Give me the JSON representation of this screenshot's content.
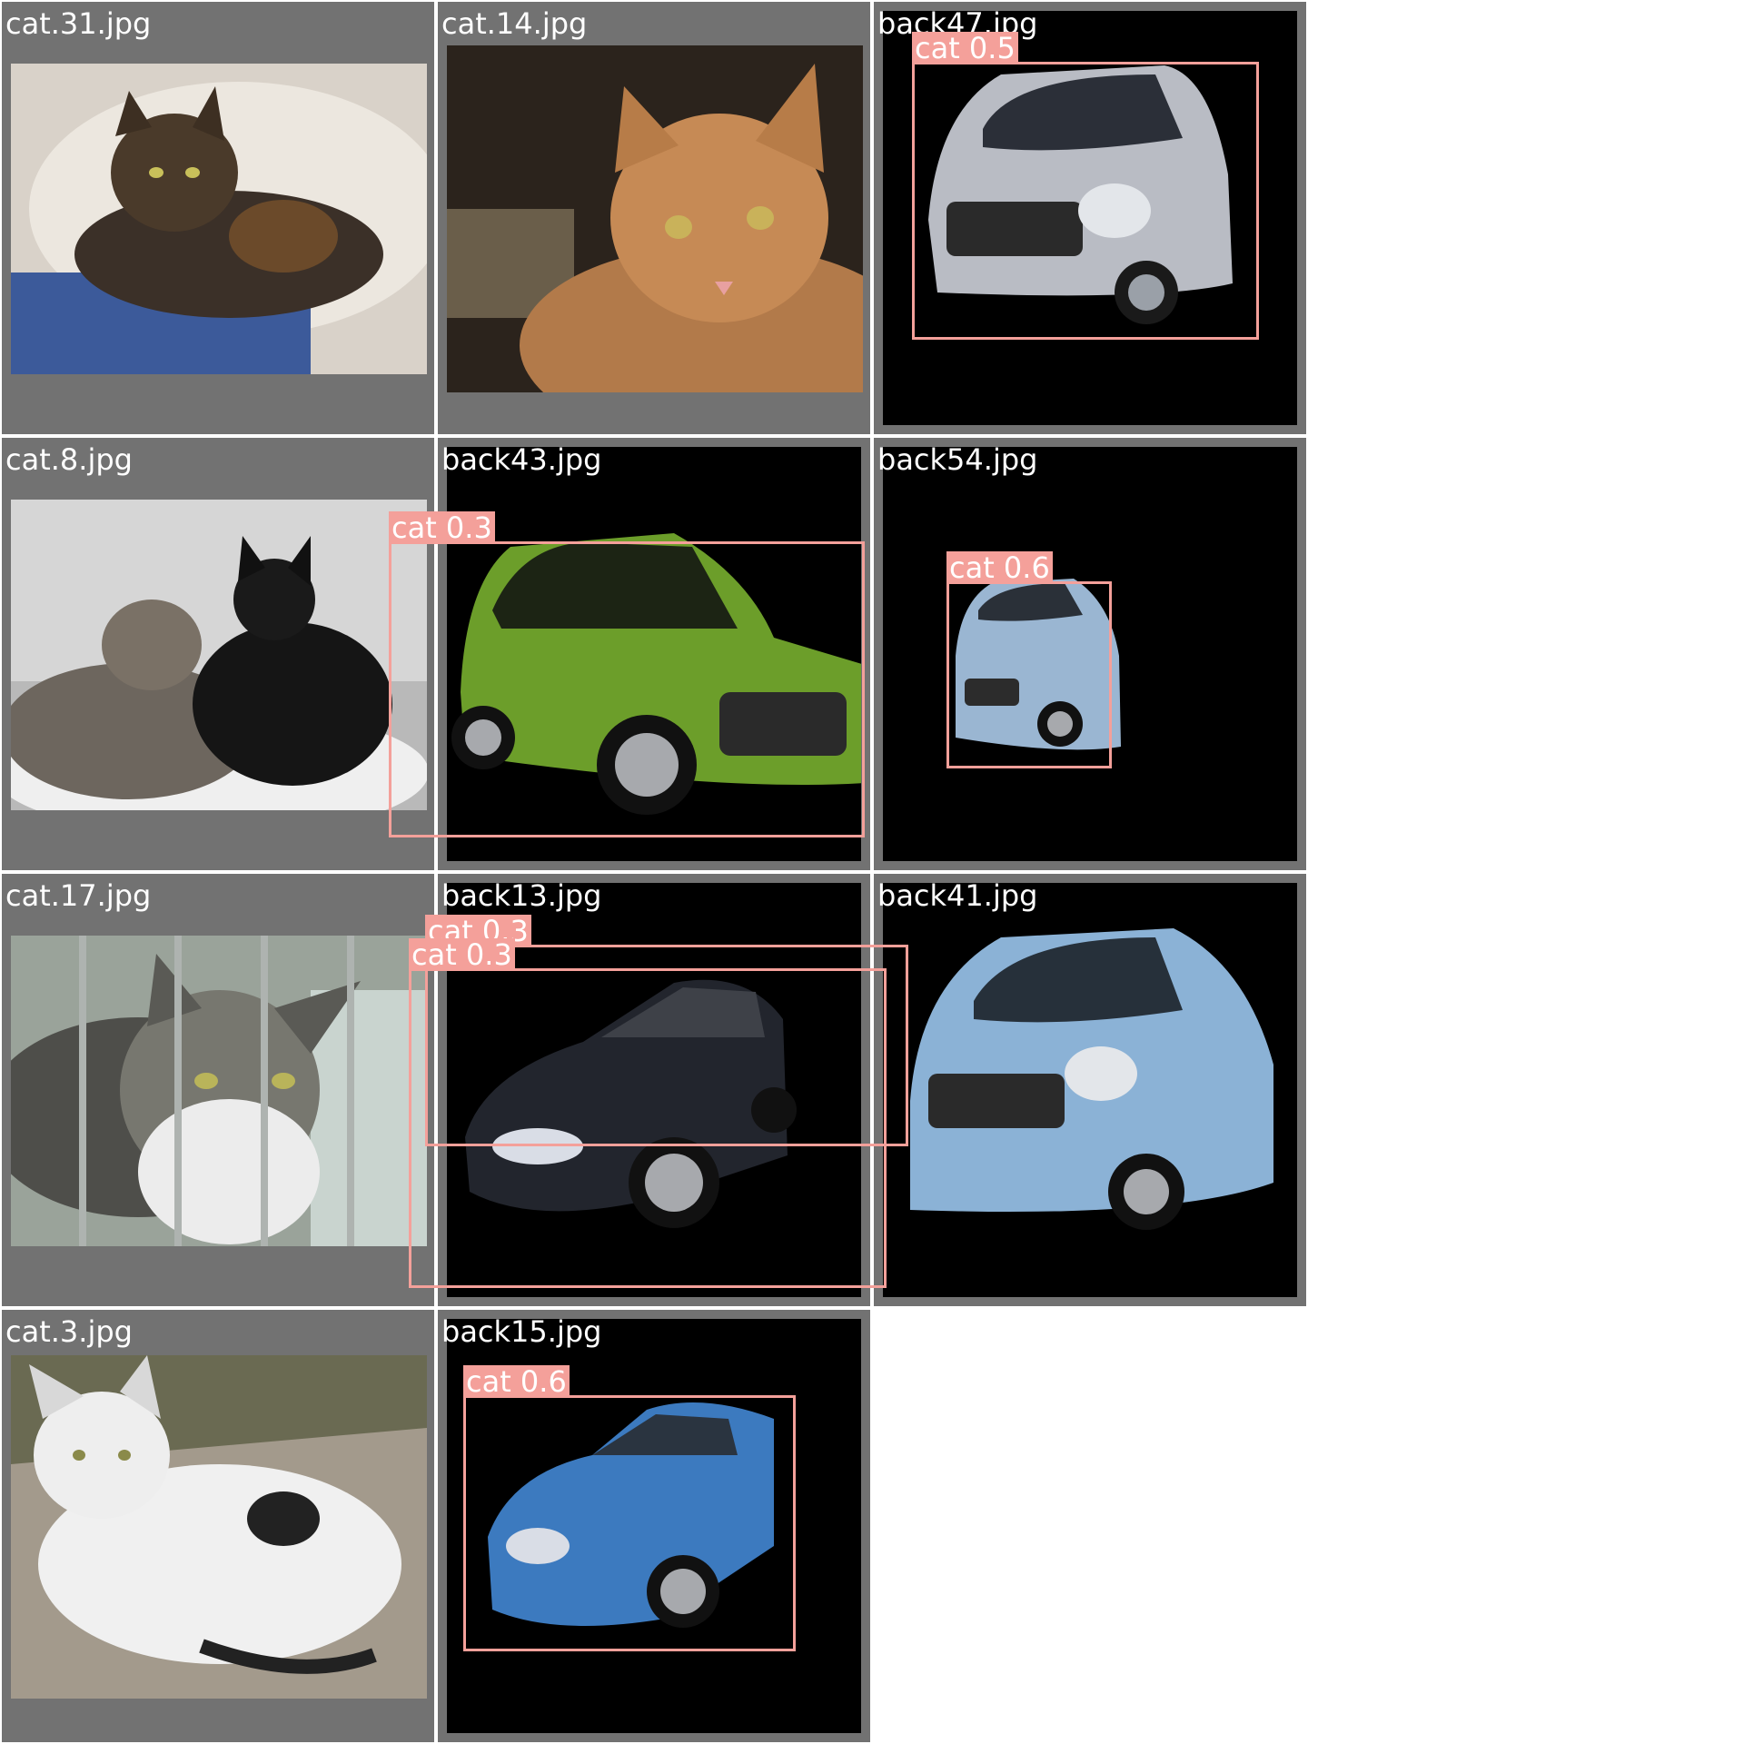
{
  "tiles": [
    {
      "id": "t1",
      "filename": "cat.31.jpg",
      "subject": "tortoiseshell-cat",
      "bg": "gray",
      "box": null
    },
    {
      "id": "t2",
      "filename": "cat.14.jpg",
      "subject": "orange-tabby-cat",
      "bg": "gray",
      "box": null
    },
    {
      "id": "t3",
      "filename": "back47.jpg",
      "subject": "silver-hatchback",
      "bg": "black",
      "box": {
        "label": "cat 0.5"
      }
    },
    {
      "id": "t4",
      "filename": "cat.8.jpg",
      "subject": "two-cats",
      "bg": "gray",
      "box": null
    },
    {
      "id": "t5",
      "filename": "back43.jpg",
      "subject": "green-hatchback",
      "bg": "black",
      "box": {
        "label": "cat 0.3"
      }
    },
    {
      "id": "t6",
      "filename": "back54.jpg",
      "subject": "blue-small-hatchback",
      "bg": "black",
      "box": {
        "label": "cat 0.6"
      }
    },
    {
      "id": "t7",
      "filename": "cat.17.jpg",
      "subject": "tabby-cat-behind-bars",
      "bg": "gray",
      "box": null
    },
    {
      "id": "t8",
      "filename": "back13.jpg",
      "subject": "dark-sedan",
      "bg": "black",
      "box": {
        "label": "cat 0.3"
      },
      "box2": {
        "label": "cat 0.3"
      }
    },
    {
      "id": "t9",
      "filename": "back41.jpg",
      "subject": "light-blue-hatchback",
      "bg": "black",
      "box": null
    },
    {
      "id": "t10",
      "filename": "cat.3.jpg",
      "subject": "white-kitten",
      "bg": "gray",
      "box": null
    },
    {
      "id": "t11",
      "filename": "back15.jpg",
      "subject": "blue-hatchback",
      "bg": "black",
      "box": {
        "label": "cat 0.6"
      }
    }
  ],
  "colors": {
    "tile_bg": "#727272",
    "box": "#f4a09a",
    "label_text": "#ffffff"
  }
}
